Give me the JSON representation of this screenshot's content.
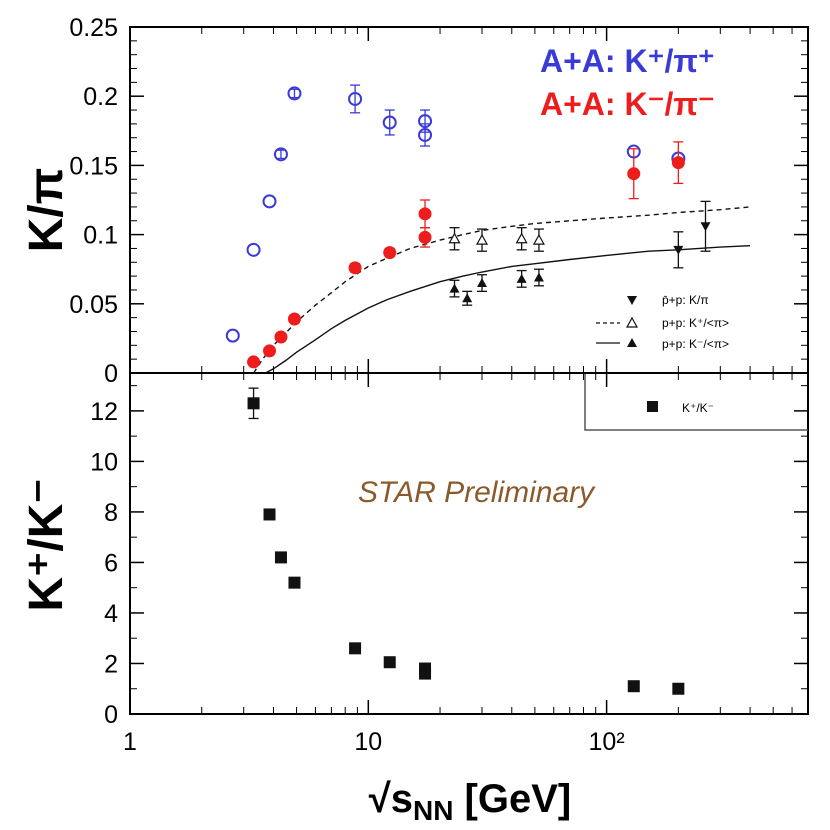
{
  "chart_data": [
    {
      "type": "scatter",
      "panel": "top",
      "xscale": "log",
      "xlim": [
        1,
        700
      ],
      "ylim": [
        0,
        0.25
      ],
      "ylabel": "K/π",
      "y_ticks": [
        "0",
        "0.05",
        "0.1",
        "0.15",
        "0.2",
        "0.25"
      ],
      "x_ticks": [
        "1",
        "10",
        "10²"
      ],
      "legend_top": [
        {
          "text": "A+A:  K⁺/π⁺",
          "color": "#3a3ad8"
        },
        {
          "text": "A+A:  K⁻/π⁻",
          "color": "#ee1c1c"
        }
      ],
      "legend_bottom": [
        {
          "label": "p̄+p: K/π",
          "marker": "triangle-down-filled"
        },
        {
          "label": "p+p: K⁺/<π>",
          "marker": "triangle-open",
          "line": "dashed"
        },
        {
          "label": "p+p: K⁻/<π>",
          "marker": "triangle-filled",
          "line": "solid"
        }
      ],
      "series": [
        {
          "name": "A+A K+/pi+",
          "marker": "circle-open",
          "color": "#3a3ad8",
          "x": [
            2.7,
            3.3,
            3.85,
            4.3,
            4.9,
            8.8,
            12.3,
            17.3,
            17.3,
            130,
            200
          ],
          "y": [
            0.027,
            0.089,
            0.124,
            0.158,
            0.202,
            0.198,
            0.181,
            0.182,
            0.172,
            0.16,
            0.155
          ],
          "err": [
            0,
            0,
            0,
            0.003,
            0.003,
            0.01,
            0.009,
            0.008,
            0.008,
            0,
            0
          ]
        },
        {
          "name": "A+A K-/pi-",
          "marker": "circle-filled",
          "color": "#ee1c1c",
          "x": [
            3.3,
            3.85,
            4.3,
            4.9,
            8.8,
            12.3,
            17.3,
            17.3,
            130,
            200
          ],
          "y": [
            0.008,
            0.016,
            0.026,
            0.039,
            0.076,
            0.087,
            0.115,
            0.098,
            0.144,
            0.152
          ],
          "err": [
            0,
            0,
            0,
            0,
            0.003,
            0.003,
            0.01,
            0.007,
            0.018,
            0.015
          ]
        },
        {
          "name": "pbar+p K/pi",
          "marker": "triangle-down-filled",
          "color": "#111111",
          "x": [
            200,
            260
          ],
          "y": [
            0.089,
            0.106
          ],
          "err": [
            0.013,
            0.018
          ]
        },
        {
          "name": "p+p K+/<pi>",
          "marker": "triangle-open",
          "color": "#111111",
          "x": [
            23,
            30,
            44,
            52
          ],
          "y": [
            0.097,
            0.096,
            0.097,
            0.096
          ],
          "err": [
            0.008,
            0.008,
            0.008,
            0.008
          ]
        },
        {
          "name": "p+p K-/<pi>",
          "marker": "triangle-filled",
          "color": "#111111",
          "x": [
            23,
            26,
            30,
            44,
            52
          ],
          "y": [
            0.061,
            0.054,
            0.065,
            0.068,
            0.069
          ],
          "err": [
            0.006,
            0.005,
            0.006,
            0.006,
            0.006
          ]
        }
      ],
      "curves": [
        {
          "name": "p+p K+/<pi> fit",
          "style": "dashed",
          "x": [
            3.3,
            3.6,
            4,
            4.5,
            5,
            6,
            7,
            8,
            10,
            12,
            15,
            20,
            25,
            30,
            40,
            50,
            70,
            100,
            150,
            200,
            300,
            400
          ],
          "y": [
            0.0,
            0.01,
            0.02,
            0.029,
            0.037,
            0.049,
            0.058,
            0.066,
            0.077,
            0.083,
            0.09,
            0.096,
            0.1,
            0.103,
            0.106,
            0.108,
            0.11,
            0.112,
            0.114,
            0.116,
            0.118,
            0.12
          ]
        },
        {
          "name": "p+p K-/<pi> fit",
          "style": "solid",
          "x": [
            3.7,
            4,
            4.5,
            5,
            6,
            7,
            8,
            10,
            12,
            15,
            20,
            25,
            30,
            40,
            50,
            70,
            100,
            150,
            200,
            300,
            400
          ],
          "y": [
            0.0,
            0.003,
            0.009,
            0.015,
            0.024,
            0.032,
            0.038,
            0.047,
            0.053,
            0.059,
            0.066,
            0.07,
            0.073,
            0.077,
            0.079,
            0.082,
            0.085,
            0.088,
            0.089,
            0.091,
            0.092
          ]
        }
      ]
    },
    {
      "type": "scatter",
      "panel": "bottom",
      "xscale": "log",
      "xlim": [
        1,
        700
      ],
      "ylim": [
        0,
        13.5
      ],
      "ylabel": "K⁺/K⁻",
      "xlabel_prefix": "√s",
      "xlabel_sub": "NN",
      "xlabel_suffix": " [GeV]",
      "y_ticks": [
        "0",
        "2",
        "4",
        "6",
        "8",
        "10",
        "12"
      ],
      "x_ticks": [
        "1",
        "10",
        "10²"
      ],
      "legend": [
        {
          "label": "K⁺/K⁻",
          "marker": "square-filled"
        }
      ],
      "annotation": "STAR Preliminary",
      "series": [
        {
          "name": "K+/K-",
          "marker": "square-filled",
          "color": "#111111",
          "x": [
            3.3,
            3.85,
            4.3,
            4.9,
            8.8,
            12.3,
            17.3,
            17.3,
            130,
            200
          ],
          "y": [
            12.3,
            7.9,
            6.2,
            5.2,
            2.6,
            2.05,
            1.8,
            1.6,
            1.1,
            1.0
          ],
          "err": [
            0.6,
            0.2,
            0.2,
            0.15,
            0.1,
            0.1,
            0.1,
            0.1,
            0.05,
            0.05
          ]
        }
      ]
    }
  ]
}
